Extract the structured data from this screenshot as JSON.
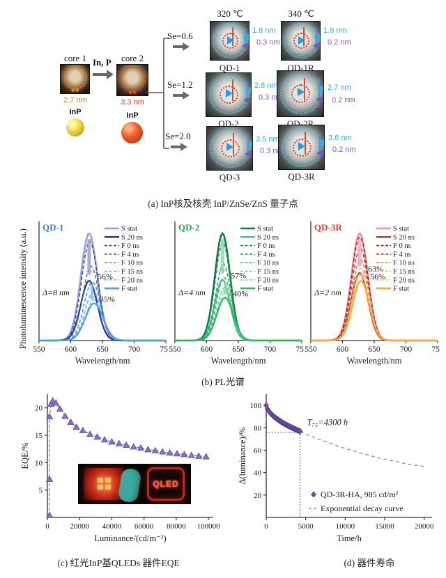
{
  "figure": {
    "panel_a": {
      "caption": "(a) InP核及核壳 InP/ZnSe/ZnS 量子点",
      "core1": {
        "label": "core 1",
        "size": "2.7 nm",
        "material": "InP"
      },
      "core2": {
        "label": "core 2",
        "size": "3.3 nm",
        "material": "InP"
      },
      "transfer_label": "In, P",
      "branches": [
        {
          "se": "Se=0.6"
        },
        {
          "se": "Se=1.2"
        },
        {
          "se": "Se=2.0"
        }
      ],
      "col_headers": [
        "320 ℃",
        "340 ℃"
      ],
      "dots": [
        {
          "name": "QD-1",
          "shell": "1.9 nm",
          "outer": "0.3 nm"
        },
        {
          "name": "QD-1R",
          "shell": "1.9 nm",
          "outer": "0.2 nm"
        },
        {
          "name": "QD-2",
          "shell": "2.8 nm",
          "outer": "0.3 nm"
        },
        {
          "name": "QD-2R",
          "shell": "2.7 nm",
          "outer": "0.2 nm"
        },
        {
          "name": "QD-3",
          "shell": "3.5 nm",
          "outer": "0.3 nm"
        },
        {
          "name": "QD-3R",
          "shell": "3.6 nm",
          "outer": "0.2 nm"
        }
      ]
    },
    "panel_b": {
      "caption": "(b) PL光谱"
    },
    "panel_c": {
      "caption": "(c) 红光InP基QLEDs 器件EQE",
      "inset_label": "QLED"
    },
    "panel_d": {
      "caption": "(d) 器件寿命"
    }
  },
  "chart_data": [
    {
      "id": "pl0",
      "type": "line",
      "title": "QD-1",
      "title_color": "#3f7cd0",
      "xlabel": "Wavelength/nm",
      "ylabel": "Photoluminescence intensity (a.u.)",
      "xlim": [
        550,
        750
      ],
      "xticks": [
        550,
        600,
        650,
        700,
        750
      ],
      "delta_label": "Δ=8 nm",
      "pct_labels": [
        "56%",
        "35%"
      ],
      "arrow_colors": [
        "#a39bd6",
        "#7cc4ec"
      ],
      "series": [
        {
          "name": "S stat",
          "color": "#a39bd6",
          "dash": "",
          "peak": 629,
          "height": 0.95,
          "width": 13,
          "lw": 2.6
        },
        {
          "name": "S 20 ns",
          "color": "#24389b",
          "dash": "",
          "peak": 629,
          "height": 0.53,
          "width": 13,
          "lw": 2.3
        },
        {
          "name": "F 0 ns",
          "color": "#2e4aa8",
          "dash": "5,3",
          "peak": 630,
          "height": 0.88,
          "width": 13,
          "lw": 1.5
        },
        {
          "name": "F 4 ns",
          "color": "#3f6cc4",
          "dash": "5,3",
          "peak": 632,
          "height": 0.66,
          "width": 13,
          "lw": 1.5
        },
        {
          "name": "F 10 ns",
          "color": "#4f8fd6",
          "dash": "5,3",
          "peak": 634,
          "height": 0.52,
          "width": 13,
          "lw": 1.5
        },
        {
          "name": "F 15 ns",
          "color": "#63ace2",
          "dash": "5,3",
          "peak": 635.5,
          "height": 0.43,
          "width": 13,
          "lw": 1.5
        },
        {
          "name": "F 20 ns",
          "color": "#7cc4ec",
          "dash": "5,3",
          "peak": 636.5,
          "height": 0.36,
          "width": 13,
          "lw": 1.5
        },
        {
          "name": "F stat",
          "color": "#45a0dc",
          "dash": "",
          "peak": 637,
          "height": 0.33,
          "width": 14,
          "lw": 2.3
        }
      ]
    },
    {
      "id": "pl1",
      "type": "line",
      "title": "QD-2",
      "title_color": "#2e9e57",
      "xlabel": "Wavelength/nm",
      "ylabel": "Photoluminescence intensity (a.u.)",
      "xlim": [
        550,
        750
      ],
      "xticks": [
        550,
        600,
        650,
        700,
        750
      ],
      "delta_label": "Δ=4 nm",
      "pct_labels": [
        "57%",
        "40%"
      ],
      "arrow_colors": [
        "#8fd4ae",
        "#8fd4ae"
      ],
      "series": [
        {
          "name": "S stat",
          "color": "#157a48",
          "dash": "",
          "peak": 625,
          "height": 0.95,
          "width": 12,
          "lw": 2.6
        },
        {
          "name": "S 20 ns",
          "color": "#3cc4a8",
          "dash": "",
          "peak": 625,
          "height": 0.54,
          "width": 12,
          "lw": 2.3
        },
        {
          "name": "F 0 ns",
          "color": "#1d8f54",
          "dash": "5,3",
          "peak": 625.5,
          "height": 0.87,
          "width": 12,
          "lw": 1.5
        },
        {
          "name": "F 4 ns",
          "color": "#2aa35c",
          "dash": "5,3",
          "peak": 626.5,
          "height": 0.68,
          "width": 12,
          "lw": 1.5
        },
        {
          "name": "F 10 ns",
          "color": "#3fb868",
          "dash": "5,3",
          "peak": 627.5,
          "height": 0.56,
          "width": 12,
          "lw": 1.5
        },
        {
          "name": "F 15 ns",
          "color": "#62c97e",
          "dash": "5,3",
          "peak": 628.2,
          "height": 0.47,
          "width": 12,
          "lw": 1.5
        },
        {
          "name": "F 20 ns",
          "color": "#8cd99b",
          "dash": "5,3",
          "peak": 628.7,
          "height": 0.42,
          "width": 12,
          "lw": 1.5
        },
        {
          "name": "F stat",
          "color": "#2eb95e",
          "dash": "",
          "peak": 629,
          "height": 0.38,
          "width": 13,
          "lw": 2.3
        }
      ]
    },
    {
      "id": "pl2",
      "type": "line",
      "title": "QD-3R",
      "title_color": "#e2402e",
      "xlabel": "Wavelength/nm",
      "ylabel": "Photoluminescence intensity (a.u.)",
      "xlim": [
        550,
        750
      ],
      "xticks": [
        550,
        600,
        650,
        700,
        750
      ],
      "delta_label": "Δ=2 nm",
      "pct_labels": [
        "63%",
        "56%"
      ],
      "arrow_colors": [
        "#f0a8c0",
        "#f0a8c0"
      ],
      "series": [
        {
          "name": "S stat",
          "color": "#ef8fb2",
          "dash": "",
          "peak": 627,
          "height": 0.95,
          "width": 13,
          "lw": 2.6
        },
        {
          "name": "S 20 ns",
          "color": "#d93323",
          "dash": "",
          "peak": 627,
          "height": 0.6,
          "width": 13,
          "lw": 2.3
        },
        {
          "name": "F 0 ns",
          "color": "#a32017",
          "dash": "5,3",
          "peak": 627.3,
          "height": 0.92,
          "width": 13,
          "lw": 1.5
        },
        {
          "name": "F 4 ns",
          "color": "#c04526",
          "dash": "5,3",
          "peak": 627.8,
          "height": 0.82,
          "width": 13,
          "lw": 1.5
        },
        {
          "name": "F 10 ns",
          "color": "#e2823a",
          "dash": "5,3",
          "peak": 628.3,
          "height": 0.72,
          "width": 13,
          "lw": 1.5
        },
        {
          "name": "F 15 ns",
          "color": "#edb052",
          "dash": "5,3",
          "peak": 628.7,
          "height": 0.64,
          "width": 13,
          "lw": 1.5
        },
        {
          "name": "F 20 ns",
          "color": "#f3c868",
          "dash": "5,3",
          "peak": 629,
          "height": 0.58,
          "width": 13,
          "lw": 1.5
        },
        {
          "name": "F stat",
          "color": "#f3a93e",
          "dash": "",
          "peak": 629,
          "height": 0.53,
          "width": 13,
          "lw": 2.3
        }
      ]
    },
    {
      "id": "eqe",
      "type": "scatter",
      "xlabel": "Luminance/(cd/m⁻²)",
      "ylabel": "EQE/%",
      "xlim": [
        0,
        103000
      ],
      "ylim": [
        0,
        22.5
      ],
      "xticks": [
        0,
        20000,
        40000,
        60000,
        80000,
        100000
      ],
      "yticks": [
        5,
        10,
        15,
        20
      ],
      "marker": "triangle",
      "marker_fill": "#8873bd",
      "marker_stroke": "#5f4a9e",
      "line_color": "#8a6fbe",
      "line_dash": "4,3",
      "x": [
        1300,
        1300,
        1300,
        2300,
        3300,
        5300,
        7800,
        11000,
        14500,
        18000,
        22000,
        26500,
        31000,
        35500,
        40000,
        44500,
        49000,
        53500,
        58000,
        62500,
        67000,
        71500,
        76000,
        80500,
        85000,
        89500,
        94000,
        98500
      ],
      "y": [
        0.4,
        7.0,
        18.4,
        20.7,
        21.3,
        20.9,
        19.8,
        18.5,
        17.4,
        16.5,
        15.9,
        15.2,
        14.7,
        14.2,
        13.8,
        13.5,
        13.2,
        12.9,
        12.7,
        12.4,
        12.2,
        12.0,
        11.8,
        11.65,
        11.5,
        11.35,
        11.2,
        11.1
      ]
    },
    {
      "id": "life",
      "type": "scatter",
      "xlabel": "Time/h",
      "ylabel": "Δ(luminance)/%",
      "xlim": [
        0,
        21000
      ],
      "ylim": [
        0,
        110
      ],
      "xticks": [
        0,
        5000,
        10000,
        15000,
        20000
      ],
      "yticks": [
        20,
        40,
        60,
        80,
        100
      ],
      "marker": "diamond",
      "marker_fill": "#6f51a3",
      "marker_stroke": "#4f3585",
      "fit_color": "#9a85c8",
      "fit_dash": "5,4",
      "guide": {
        "x": 4300,
        "y": 76
      },
      "t75_annotation": "T₇₅=4300 h",
      "legend": [
        {
          "marker": "diamond",
          "label": "QD-3R-HA, 985 cd/m²"
        },
        {
          "marker": "dash",
          "label": "Exponential decay curve"
        }
      ],
      "measured_x": [
        0,
        150,
        300,
        450,
        600,
        750,
        900,
        1050,
        1200,
        1350,
        1500,
        1650,
        1800,
        1950,
        2100,
        2250,
        2400,
        2550,
        2700,
        2850,
        3000,
        3150,
        3300,
        3450,
        3600,
        3750,
        3900,
        4050,
        4200,
        4300
      ],
      "measured_y": [
        100,
        96.8,
        95.1,
        93.7,
        92.5,
        91.5,
        90.5,
        89.6,
        88.8,
        88.0,
        87.2,
        86.5,
        85.8,
        85.1,
        84.5,
        83.8,
        83.2,
        82.7,
        82.1,
        81.5,
        81.0,
        80.5,
        80.0,
        79.5,
        79.0,
        78.5,
        78.0,
        77.6,
        77.1,
        76.8
      ],
      "fit_x": [
        4300,
        5000,
        6000,
        7000,
        8000,
        9000,
        10000,
        11000,
        12000,
        13000,
        14000,
        15000,
        16000,
        17000,
        18000,
        19000,
        20000
      ],
      "fit_y": [
        76.5,
        74.5,
        71.5,
        69.0,
        66.5,
        64.0,
        61.5,
        59.5,
        57.5,
        55.5,
        53.5,
        52.0,
        50.5,
        49.0,
        47.5,
        46.5,
        45.5
      ]
    }
  ]
}
